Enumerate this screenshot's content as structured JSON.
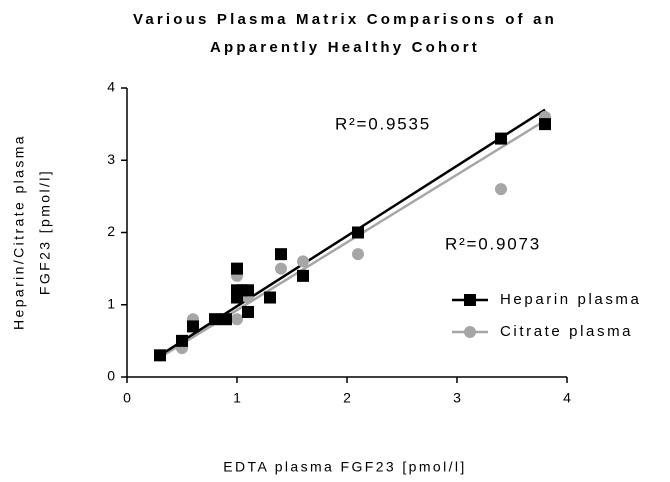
{
  "chart_data": {
    "type": "scatter",
    "title": [
      "Various Plasma Matrix Comparisons of an",
      "Apparently Healthy Cohort"
    ],
    "xlabel": "EDTA plasma FGF23 [pmol/l]",
    "ylabel": [
      "Heparin/Citrate plasma",
      "FGF23 [pmol/l]"
    ],
    "xlim": [
      0,
      4
    ],
    "xticks": [
      0,
      1,
      2,
      3,
      4
    ],
    "ylim": [
      0,
      4
    ],
    "yticks": [
      0,
      1,
      2,
      3,
      4
    ],
    "legend": "right",
    "series": [
      {
        "name": "Heparin plasma",
        "color": "#000000",
        "marker": "square",
        "x": [
          0.3,
          0.5,
          0.6,
          0.8,
          0.9,
          1.0,
          1.0,
          1.0,
          1.05,
          1.1,
          1.1,
          1.3,
          1.4,
          1.6,
          2.1,
          3.4,
          3.8
        ],
        "values": [
          0.3,
          0.5,
          0.7,
          0.8,
          0.8,
          1.5,
          1.2,
          1.1,
          1.2,
          1.2,
          0.9,
          1.1,
          1.7,
          1.4,
          2.0,
          3.3,
          3.5
        ],
        "fit": {
          "x": [
            0.3,
            3.8
          ],
          "values": [
            0.3,
            3.7
          ]
        },
        "annotation": "R²=0.9535"
      },
      {
        "name": "Citrate plasma",
        "color": "#a6a6a6",
        "marker": "circle",
        "x": [
          0.3,
          0.5,
          0.6,
          0.9,
          1.0,
          1.0,
          1.0,
          1.1,
          1.4,
          1.6,
          2.1,
          2.1,
          3.4,
          3.8
        ],
        "values": [
          0.3,
          0.4,
          0.8,
          0.8,
          1.4,
          0.8,
          1.2,
          1.1,
          1.5,
          1.6,
          1.7,
          2.0,
          2.6,
          3.6
        ],
        "fit": {
          "x": [
            0.3,
            3.8
          ],
          "values": [
            0.27,
            3.55
          ]
        },
        "annotation": "R²=0.9073"
      }
    ]
  }
}
